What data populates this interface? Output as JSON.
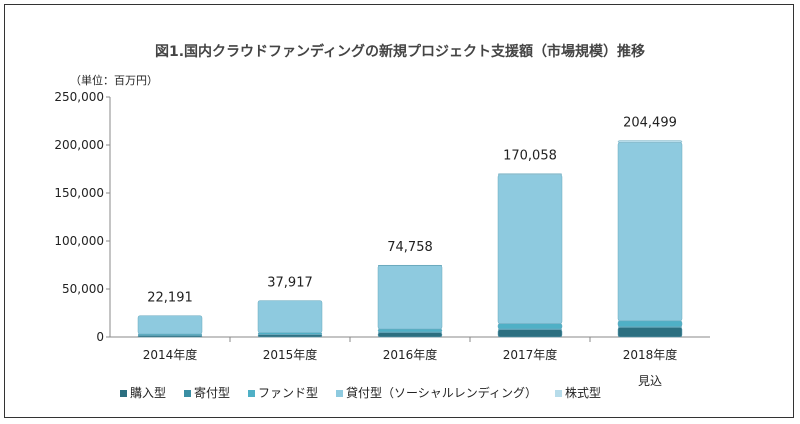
{
  "chart_data": {
    "type": "bar",
    "stacked": true,
    "title": "図1.国内クラウドファンディングの新規プロジェクト支援額（市場規模）推移",
    "unit_label": "（単位：百万円）",
    "categories": [
      "2014年度",
      "2015年度",
      "2016年度",
      "2017年度",
      "2018年度"
    ],
    "category_notes": [
      "",
      "",
      "",
      "",
      "見込"
    ],
    "totals": [
      22191,
      37917,
      74758,
      170058,
      204499
    ],
    "total_labels": [
      "22,191",
      "37,917",
      "74,758",
      "170,058",
      "204,499"
    ],
    "series": [
      {
        "name": "購入型",
        "color": "#2c6f80",
        "values": [
          1800,
          2500,
          4500,
          7700,
          10000
        ]
      },
      {
        "name": "寄付型",
        "color": "#3a8ea3",
        "values": [
          200,
          300,
          800,
          700,
          800
        ]
      },
      {
        "name": "ファンド型",
        "color": "#4fb0c6",
        "values": [
          1100,
          1600,
          3000,
          5500,
          6000
        ]
      },
      {
        "name": "貸付型（ソーシャルレンディング）",
        "color": "#8ecadf",
        "values": [
          19091,
          33517,
          66258,
          155158,
          185699
        ]
      },
      {
        "name": "株式型",
        "color": "#b7dcea",
        "values": [
          0,
          0,
          200,
          1000,
          2000
        ]
      }
    ],
    "ylim": [
      0,
      250000
    ],
    "yticks": [
      "0",
      "50,000",
      "100,000",
      "150,000",
      "200,000",
      "250,000"
    ],
    "grid": false,
    "legend_position": "bottom"
  }
}
